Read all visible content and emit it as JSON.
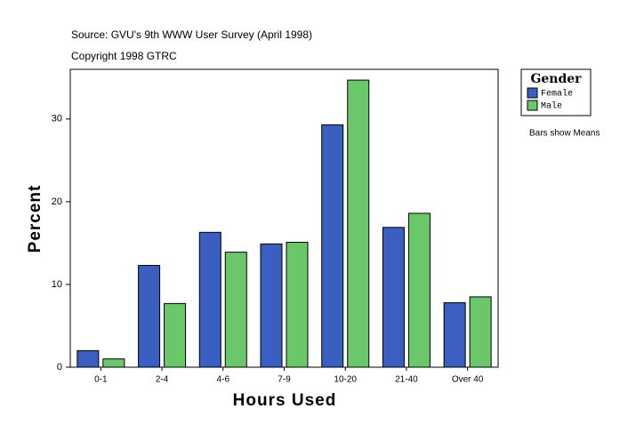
{
  "chart_data": {
    "type": "bar",
    "title": "Source: GVU's 9th WWW User Survey (April 1998)",
    "subtitle": "Copyright 1998 GTRC",
    "x_label": "Hours Used",
    "y_label": "Percent",
    "legend_title": "Gender",
    "annotation": "Bars show Means",
    "categories": [
      "0-1",
      "2-4",
      "4-6",
      "7-9",
      "10-20",
      "21-40",
      "Over 40"
    ],
    "series": [
      {
        "name": "Female",
        "color": "#3a5fc0",
        "values": [
          2.0,
          12.3,
          16.3,
          14.9,
          29.3,
          16.9,
          7.8
        ]
      },
      {
        "name": "Male",
        "color": "#6ac86a",
        "values": [
          1.0,
          7.7,
          13.9,
          15.1,
          34.7,
          18.6,
          8.5
        ]
      }
    ],
    "ylim": [
      0,
      36
    ],
    "yticks": [
      0,
      10,
      20,
      30
    ],
    "grid": false
  }
}
